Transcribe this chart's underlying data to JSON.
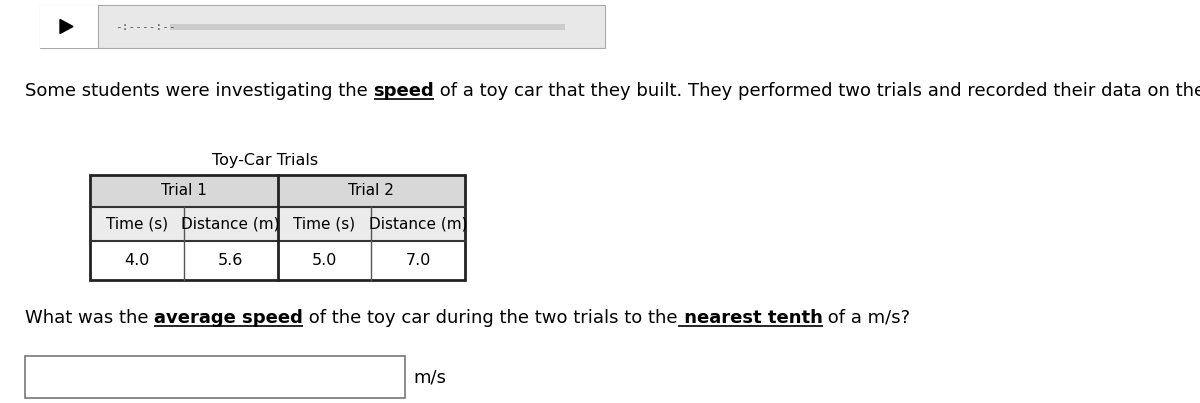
{
  "bg_color": "#ffffff",
  "media_bar_bg": "#e8e8e8",
  "para_text_segments": [
    {
      "text": "Some students were investigating the ",
      "bold": false,
      "underline": false
    },
    {
      "text": "speed",
      "bold": true,
      "underline": true
    },
    {
      "text": " of a toy car that they built. They performed two trials and recorded their data on the table below.",
      "bold": false,
      "underline": false
    }
  ],
  "table_title": "Toy-Car Trials",
  "col_headers": [
    "Trial 1",
    "Trial 2"
  ],
  "sub_headers": [
    "Time (s)",
    "Distance (m)",
    "Time (s)",
    "Distance (m)"
  ],
  "data_values": [
    "4.0",
    "5.6",
    "5.0",
    "7.0"
  ],
  "question_segments": [
    {
      "text": "What was the ",
      "bold": false,
      "underline": false
    },
    {
      "text": "average speed",
      "bold": true,
      "underline": true
    },
    {
      "text": " of the toy car during the two trials to the",
      "bold": false,
      "underline": false
    },
    {
      "text": " nearest tenth",
      "bold": true,
      "underline": true
    },
    {
      "text": " of a m/s?",
      "bold": false,
      "underline": false
    }
  ],
  "font_size_para": 13.0,
  "font_size_table_title": 11.5,
  "font_size_table_header": 11.0,
  "font_size_table_data": 11.5,
  "font_size_question": 13.0
}
